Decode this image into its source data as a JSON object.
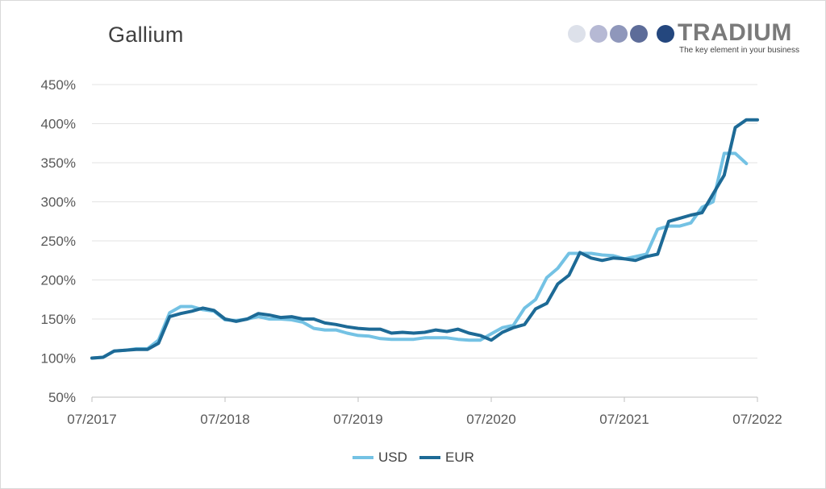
{
  "title": "Gallium",
  "logo": {
    "brand": "TRADIUM",
    "tagline": "The key element in your business",
    "dot_colors": [
      "#dde1ea",
      "#b6b9d4",
      "#8f97bb",
      "#5d6c99",
      "#24477e"
    ]
  },
  "chart_data": {
    "type": "line",
    "title": "Gallium",
    "xlabel": "",
    "ylabel": "",
    "ylim": [
      50,
      450
    ],
    "yticks": [
      "50%",
      "100%",
      "150%",
      "200%",
      "250%",
      "300%",
      "350%",
      "400%",
      "450%"
    ],
    "xticks": [
      "07/2017",
      "07/2018",
      "07/2019",
      "07/2020",
      "07/2021",
      "07/2022"
    ],
    "grid": true,
    "legend_position": "bottom",
    "series": [
      {
        "name": "USD",
        "color": "#74c2e4",
        "values": [
          100,
          101,
          109,
          110,
          112,
          112,
          123,
          158,
          166,
          166,
          162,
          160,
          149,
          148,
          150,
          153,
          150,
          150,
          149,
          146,
          138,
          136,
          136,
          132,
          129,
          128,
          125,
          124,
          124,
          124,
          126,
          126,
          126,
          124,
          123,
          123,
          131,
          139,
          142,
          164,
          175,
          203,
          215,
          234,
          234,
          234,
          232,
          231,
          227,
          230,
          233,
          265,
          269,
          269,
          273,
          293,
          300,
          362,
          362,
          349
        ],
        "labels": [
          "07/2017",
          "08/2017",
          "09/2017",
          "10/2017",
          "11/2017",
          "12/2017",
          "01/2018",
          "02/2018",
          "03/2018",
          "04/2018",
          "05/2018",
          "06/2018",
          "07/2018",
          "08/2018",
          "09/2018",
          "10/2018",
          "11/2018",
          "12/2018",
          "01/2019",
          "02/2019",
          "03/2019",
          "04/2019",
          "05/2019",
          "06/2019",
          "07/2019",
          "08/2019",
          "09/2019",
          "10/2019",
          "11/2019",
          "12/2019",
          "01/2020",
          "02/2020",
          "03/2020",
          "04/2020",
          "05/2020",
          "06/2020",
          "07/2020",
          "08/2020",
          "09/2020",
          "10/2020",
          "11/2020",
          "12/2020",
          "01/2021",
          "02/2021",
          "03/2021",
          "04/2021",
          "05/2021",
          "06/2021",
          "07/2021",
          "08/2021",
          "09/2021",
          "10/2021",
          "11/2021",
          "12/2021",
          "01/2022",
          "02/2022",
          "03/2022",
          "04/2022",
          "05/2022",
          "06/2022"
        ]
      },
      {
        "name": "EUR",
        "color": "#1d6a96",
        "values": [
          100,
          101,
          109,
          110,
          111,
          111,
          119,
          153,
          157,
          160,
          164,
          161,
          150,
          147,
          150,
          157,
          155,
          152,
          153,
          150,
          150,
          145,
          143,
          140,
          138,
          137,
          137,
          132,
          133,
          132,
          133,
          136,
          134,
          137,
          132,
          129,
          123,
          133,
          139,
          143,
          163,
          170,
          195,
          206,
          235,
          228,
          225,
          228,
          227,
          225,
          230,
          233,
          275,
          279,
          283,
          286,
          310,
          334,
          395,
          405,
          405
        ],
        "labels": [
          "07/2017",
          "08/2017",
          "09/2017",
          "10/2017",
          "11/2017",
          "12/2017",
          "01/2018",
          "02/2018",
          "03/2018",
          "04/2018",
          "05/2018",
          "06/2018",
          "07/2018",
          "08/2018",
          "09/2018",
          "10/2018",
          "11/2018",
          "12/2018",
          "01/2019",
          "02/2019",
          "03/2019",
          "04/2019",
          "05/2019",
          "06/2019",
          "07/2019",
          "08/2019",
          "09/2019",
          "10/2019",
          "11/2019",
          "12/2019",
          "01/2020",
          "02/2020",
          "03/2020",
          "04/2020",
          "05/2020",
          "06/2020",
          "07/2020",
          "08/2020",
          "09/2020",
          "10/2020",
          "11/2020",
          "12/2020",
          "01/2021",
          "02/2021",
          "03/2021",
          "04/2021",
          "05/2021",
          "06/2021",
          "07/2021",
          "08/2021",
          "09/2021",
          "10/2021",
          "11/2021",
          "12/2021",
          "01/2022",
          "02/2022",
          "03/2022",
          "04/2022",
          "05/2022",
          "06/2022",
          "07/2022"
        ]
      }
    ]
  }
}
